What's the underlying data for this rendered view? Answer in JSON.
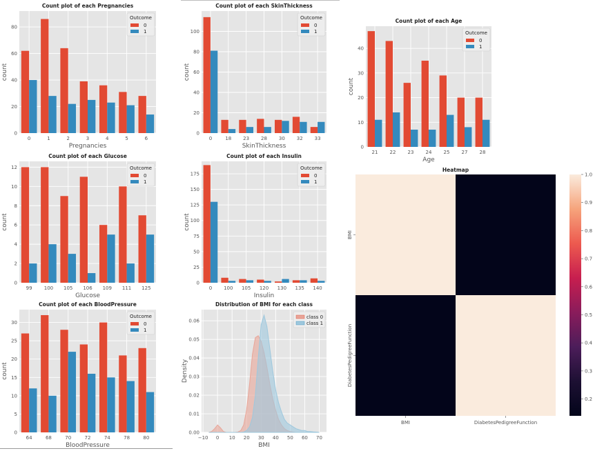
{
  "colors": {
    "c0": "#e24a33",
    "c1": "#348abd",
    "kde0": "#e8a598",
    "kde1": "#9ec8dd",
    "heat_hi": "#faebdd",
    "heat_lo": "#03051a"
  },
  "chart_data": [
    {
      "id": "preg",
      "type": "bar",
      "title": "Count plot of each Pregnancies",
      "xlabel": "Pregnancies",
      "ylabel": "count",
      "categories": [
        "0",
        "1",
        "2",
        "3",
        "4",
        "5",
        "6"
      ],
      "series": [
        {
          "name": "0",
          "values": [
            62,
            86,
            64,
            39,
            36,
            31,
            28
          ]
        },
        {
          "name": "1",
          "values": [
            40,
            28,
            22,
            25,
            23,
            21,
            14
          ]
        }
      ],
      "ylim": [
        0,
        92
      ],
      "yticks": [
        0,
        20,
        40,
        60,
        80
      ],
      "legend": {
        "title": "Outcome",
        "position": "top-right"
      }
    },
    {
      "id": "skin",
      "type": "bar",
      "title": "Count plot of each SkinThickness",
      "xlabel": "SkinThickness",
      "ylabel": "count",
      "categories": [
        "0",
        "18",
        "23",
        "28",
        "30",
        "32",
        "33"
      ],
      "series": [
        {
          "name": "0",
          "values": [
            114,
            13,
            13,
            14,
            13,
            16,
            6
          ]
        },
        {
          "name": "1",
          "values": [
            81,
            4,
            6,
            6,
            12,
            11,
            11
          ]
        }
      ],
      "ylim": [
        0,
        120
      ],
      "yticks": [
        0,
        20,
        40,
        60,
        80,
        100
      ],
      "legend": {
        "title": "Outcome",
        "position": "top-right"
      }
    },
    {
      "id": "age",
      "type": "bar",
      "title": "Count plot of each Age",
      "xlabel": "Age",
      "ylabel": "count",
      "categories": [
        "21",
        "22",
        "23",
        "24",
        "25",
        "27",
        "28"
      ],
      "series": [
        {
          "name": "0",
          "values": [
            47,
            43,
            26,
            35,
            29,
            20,
            20
          ]
        },
        {
          "name": "1",
          "values": [
            11,
            14,
            7,
            7,
            13,
            8,
            11
          ]
        }
      ],
      "ylim": [
        0,
        49
      ],
      "yticks": [
        0,
        10,
        20,
        30,
        40
      ],
      "legend": {
        "title": "Outcome",
        "position": "top-right"
      }
    },
    {
      "id": "gluc",
      "type": "bar",
      "title": "Count plot of each Glucose",
      "xlabel": "Glucose",
      "ylabel": "count",
      "categories": [
        "99",
        "100",
        "105",
        "106",
        "109",
        "111",
        "125"
      ],
      "series": [
        {
          "name": "0",
          "values": [
            12,
            12,
            9,
            11,
            6,
            10,
            7
          ]
        },
        {
          "name": "1",
          "values": [
            2,
            4,
            3,
            1,
            5,
            2,
            5
          ]
        }
      ],
      "ylim": [
        0,
        12.6
      ],
      "yticks": [
        0,
        2,
        4,
        6,
        8,
        10,
        12
      ],
      "legend": {
        "title": "Outcome",
        "position": "top-right"
      }
    },
    {
      "id": "ins",
      "type": "bar",
      "title": "Count plot of each Insulin",
      "xlabel": "Insulin",
      "ylabel": "count",
      "categories": [
        "0",
        "100",
        "105",
        "120",
        "130",
        "135",
        "140"
      ],
      "series": [
        {
          "name": "0",
          "values": [
            189,
            8,
            6,
            5,
            2,
            4,
            7
          ]
        },
        {
          "name": "1",
          "values": [
            130,
            3,
            4,
            3,
            6,
            4,
            3
          ]
        }
      ],
      "ylim": [
        0,
        195
      ],
      "yticks": [
        0,
        25,
        50,
        75,
        100,
        125,
        150,
        175
      ],
      "legend": {
        "title": "Outcome",
        "position": "top-right"
      }
    },
    {
      "id": "bp",
      "type": "bar",
      "title": "Count plot of each BloodPressure",
      "xlabel": "BloodPressure",
      "ylabel": "count",
      "categories": [
        "64",
        "68",
        "70",
        "72",
        "74",
        "78",
        "80"
      ],
      "series": [
        {
          "name": "0",
          "values": [
            27,
            32,
            28,
            24,
            30,
            21,
            23
          ]
        },
        {
          "name": "1",
          "values": [
            12,
            10,
            22,
            16,
            15,
            14,
            11
          ]
        }
      ],
      "ylim": [
        0,
        33.5
      ],
      "yticks": [
        0,
        5,
        10,
        15,
        20,
        25,
        30
      ],
      "legend": {
        "title": "Outcome",
        "position": "top-right"
      }
    },
    {
      "id": "kde",
      "type": "area",
      "title": "Distribution of BMI for each class",
      "xlabel": "BMI",
      "ylabel": "Density",
      "xlim": [
        -11,
        75
      ],
      "ylim": [
        0,
        0.066
      ],
      "xticks": [
        -10,
        0,
        10,
        20,
        30,
        40,
        50,
        60,
        70
      ],
      "yticks": [
        0.0,
        0.01,
        0.02,
        0.03,
        0.04,
        0.05,
        0.06
      ],
      "ytick_labels": [
        "0.00",
        "0.01",
        "0.02",
        "0.03",
        "0.04",
        "0.05",
        "0.06"
      ],
      "x": [
        -6,
        -4,
        -2,
        0,
        2,
        4,
        6,
        8,
        10,
        12,
        14,
        16,
        18,
        20,
        22,
        24,
        26,
        28,
        30,
        32,
        34,
        36,
        38,
        40,
        42,
        44,
        46,
        48,
        50,
        52,
        54,
        56,
        58,
        60,
        62,
        64,
        66,
        68,
        70
      ],
      "series": [
        {
          "name": "class 0",
          "values": [
            0,
            0.0005,
            0.002,
            0.004,
            0.0025,
            0.0005,
            0,
            0,
            0,
            0,
            0.0002,
            0.001,
            0.004,
            0.012,
            0.026,
            0.042,
            0.051,
            0.052,
            0.049,
            0.043,
            0.035,
            0.026,
            0.018,
            0.012,
            0.007,
            0.004,
            0.002,
            0.001,
            0.0005,
            0.0002,
            0,
            0,
            0,
            0,
            0,
            0,
            0,
            0,
            0
          ]
        },
        {
          "name": "class 1",
          "values": [
            0,
            0,
            0,
            0,
            0,
            0,
            0,
            0,
            0,
            0,
            0,
            0,
            0.0002,
            0.001,
            0.003,
            0.008,
            0.02,
            0.04,
            0.058,
            0.063,
            0.057,
            0.045,
            0.033,
            0.023,
            0.016,
            0.011,
            0.007,
            0.005,
            0.004,
            0.003,
            0.002,
            0.0015,
            0.001,
            0.001,
            0.0005,
            0.0005,
            0.0003,
            0.0002,
            0
          ]
        }
      ],
      "legend": {
        "position": "top-right"
      }
    },
    {
      "id": "heat",
      "type": "heatmap",
      "title": "Heatmap",
      "rows": [
        "BMI",
        "DiabetesPedigreeFunction"
      ],
      "cols": [
        "BMI",
        "DiabetesPedigreeFunction"
      ],
      "values": [
        [
          1.0,
          0.14
        ],
        [
          0.14,
          1.0
        ]
      ],
      "colorbar": {
        "min": 0.14,
        "max": 1.0,
        "ticks": [
          "1.0",
          "0.9",
          "0.8",
          "0.7",
          "0.6",
          "0.5",
          "0.4",
          "0.3",
          "0.2"
        ]
      }
    }
  ]
}
